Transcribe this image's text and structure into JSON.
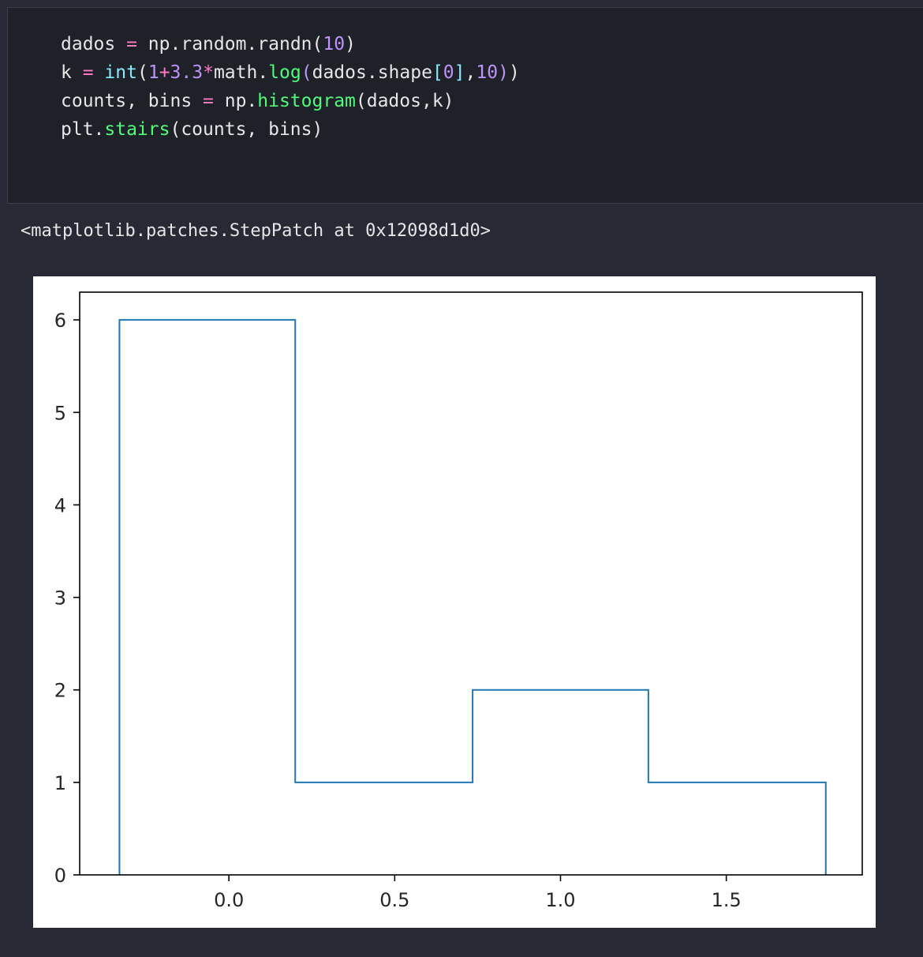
{
  "cell": {
    "code_lines": [
      [
        {
          "t": "dados ",
          "c": ""
        },
        {
          "t": "=",
          "c": "op"
        },
        {
          "t": " np.random.randn",
          "c": ""
        },
        {
          "t": "(",
          "c": ""
        },
        {
          "t": "10",
          "c": "num"
        },
        {
          "t": ")",
          "c": ""
        }
      ],
      [
        {
          "t": "k ",
          "c": ""
        },
        {
          "t": "=",
          "c": "op"
        },
        {
          "t": " ",
          "c": ""
        },
        {
          "t": "int",
          "c": "bi"
        },
        {
          "t": "(",
          "c": ""
        },
        {
          "t": "1",
          "c": "num"
        },
        {
          "t": "+",
          "c": "op"
        },
        {
          "t": "3.3",
          "c": "num"
        },
        {
          "t": "*",
          "c": "op"
        },
        {
          "t": "math.",
          "c": ""
        },
        {
          "t": "log",
          "c": "fn"
        },
        {
          "t": "(",
          "c": "br"
        },
        {
          "t": "dados.shape",
          "c": ""
        },
        {
          "t": "[",
          "c": "bi"
        },
        {
          "t": "0",
          "c": "num"
        },
        {
          "t": "]",
          "c": "bi"
        },
        {
          "t": ",",
          "c": ""
        },
        {
          "t": "10",
          "c": "num"
        },
        {
          "t": ")",
          "c": "br"
        },
        {
          "t": ")",
          "c": ""
        }
      ],
      [
        {
          "t": "counts, bins ",
          "c": ""
        },
        {
          "t": "=",
          "c": "op"
        },
        {
          "t": " np.",
          "c": ""
        },
        {
          "t": "histogram",
          "c": "fn"
        },
        {
          "t": "(dados,k)",
          "c": ""
        }
      ],
      [
        {
          "t": "plt.",
          "c": ""
        },
        {
          "t": "stairs",
          "c": "fn"
        },
        {
          "t": "(counts, bins)",
          "c": ""
        }
      ]
    ]
  },
  "output": {
    "repr_text": "<matplotlib.patches.StepPatch at 0x12098d1d0>"
  },
  "chart_data": {
    "type": "stairs",
    "bin_edges": [
      -0.33,
      0.2,
      0.735,
      1.265,
      1.8
    ],
    "values": [
      6,
      1,
      2,
      1
    ],
    "xlim": [
      -0.45,
      1.91
    ],
    "ylim": [
      0,
      6.3
    ],
    "xticks": [
      0.0,
      0.5,
      1.0,
      1.5
    ],
    "xtick_labels": [
      "0.0",
      "0.5",
      "1.0",
      "1.5"
    ],
    "yticks": [
      0,
      1,
      2,
      3,
      4,
      5,
      6
    ],
    "ytick_labels": [
      "0",
      "1",
      "2",
      "3",
      "4",
      "5",
      "6"
    ],
    "line_color": "#1f77b4",
    "title": "",
    "xlabel": "",
    "ylabel": "",
    "grid": false
  }
}
